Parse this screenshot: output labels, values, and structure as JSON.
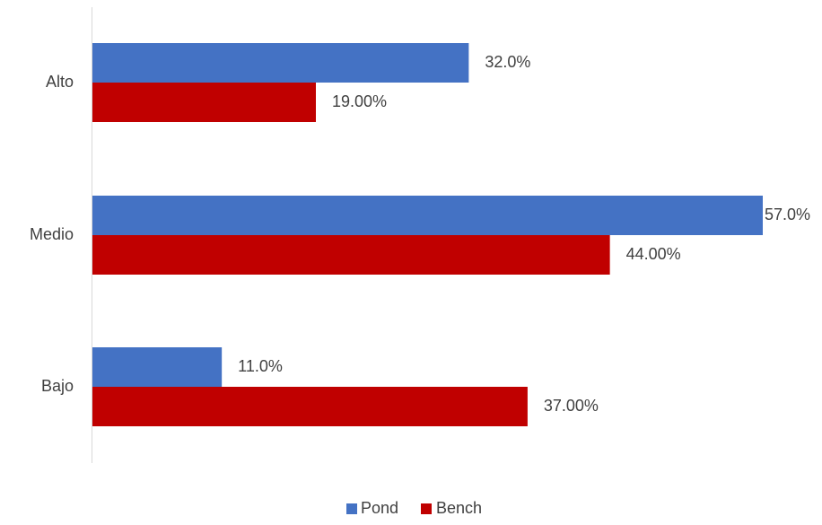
{
  "chart_data": {
    "type": "bar",
    "orientation": "horizontal",
    "categories": [
      "Alto",
      "Medio",
      "Bajo"
    ],
    "series": [
      {
        "name": "Pond",
        "color": "#4472C4",
        "values": [
          32.0,
          57.0,
          11.0
        ],
        "labels": [
          "32.0%",
          "57.0%",
          "11.0%"
        ]
      },
      {
        "name": "Bench",
        "color": "#C00000",
        "values": [
          19.0,
          44.0,
          37.0
        ],
        "labels": [
          "19.00%",
          "44.00%",
          "37.00%"
        ]
      }
    ],
    "xlim": [
      0,
      57
    ],
    "unit": "%",
    "grid": false,
    "legend_position": "bottom"
  }
}
